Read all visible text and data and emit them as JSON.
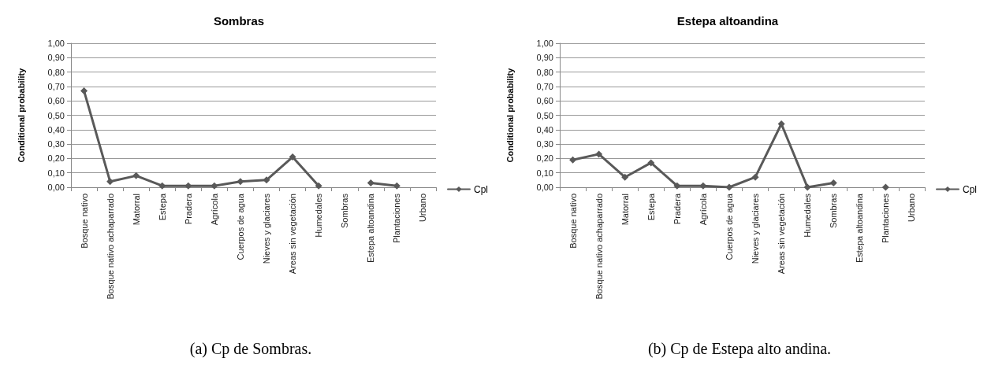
{
  "chart_data": [
    {
      "type": "line",
      "title": "Sombras",
      "ylabel": "Conditional probability",
      "categories": [
        "Bosque nativo",
        "Bosque nativo achaparrado",
        "Matorral",
        "Estepa",
        "Pradera",
        "Agrícola",
        "Cuerpos de agua",
        "Nieves y glaciares",
        "Areas sin vegetación",
        "Humedales",
        "Sombras",
        "Estepa altoandina",
        "Plantaciones",
        "Urbano"
      ],
      "series": [
        {
          "name": "Cpl",
          "color": "#595959",
          "values": [
            0.67,
            0.04,
            0.08,
            0.01,
            0.01,
            0.01,
            0.04,
            0.05,
            0.21,
            0.01,
            null,
            0.03,
            0.01,
            null
          ]
        }
      ],
      "ylim": [
        0,
        1
      ],
      "yticks": [
        {
          "value": 0,
          "label": "0,00"
        },
        {
          "value": 0.1,
          "label": "0,10"
        },
        {
          "value": 0.2,
          "label": "0,20"
        },
        {
          "value": 0.3,
          "label": "0,30"
        },
        {
          "value": 0.4,
          "label": "0,40"
        },
        {
          "value": 0.5,
          "label": "0,50"
        },
        {
          "value": 0.6,
          "label": "0,60"
        },
        {
          "value": 0.7,
          "label": "0,70"
        },
        {
          "value": 0.8,
          "label": "0,80"
        },
        {
          "value": 0.9,
          "label": "0,90"
        },
        {
          "value": 1,
          "label": "1,00"
        }
      ],
      "grid": "y",
      "legend": "right",
      "marker": "diamond",
      "line_style": "solid",
      "annotations": [
        "(a) Cp de Sombras."
      ]
    },
    {
      "type": "line",
      "title": "Estepa altoandina",
      "ylabel": "Conditional probability",
      "categories": [
        "Bosque nativo",
        "Bosque nativo achaparrado",
        "Matorral",
        "Estepa",
        "Pradera",
        "Agrícola",
        "Cuerpos de agua",
        "Nieves y glaciares",
        "Areas sin vegetación",
        "Humedales",
        "Sombras",
        "Estepa altoandina",
        "Plantaciones",
        "Urbano"
      ],
      "series": [
        {
          "name": "Cpl",
          "color": "#595959",
          "values": [
            0.19,
            0.23,
            0.07,
            0.17,
            0.01,
            0.01,
            0.0,
            0.07,
            0.44,
            0.0,
            0.03,
            null,
            0.0,
            null
          ]
        }
      ],
      "ylim": [
        0,
        1
      ],
      "yticks": [
        {
          "value": 0,
          "label": "0,00"
        },
        {
          "value": 0.1,
          "label": "0,10"
        },
        {
          "value": 0.2,
          "label": "0,20"
        },
        {
          "value": 0.3,
          "label": "0,30"
        },
        {
          "value": 0.4,
          "label": "0,40"
        },
        {
          "value": 0.5,
          "label": "0,50"
        },
        {
          "value": 0.6,
          "label": "0,60"
        },
        {
          "value": 0.7,
          "label": "0,70"
        },
        {
          "value": 0.8,
          "label": "0,80"
        },
        {
          "value": 0.9,
          "label": "0,90"
        },
        {
          "value": 1,
          "label": "1,00"
        }
      ],
      "grid": "y",
      "legend": "right",
      "marker": "diamond",
      "line_style": "solid",
      "annotations": [
        "(b) Cp de Estepa alto andina."
      ]
    }
  ]
}
